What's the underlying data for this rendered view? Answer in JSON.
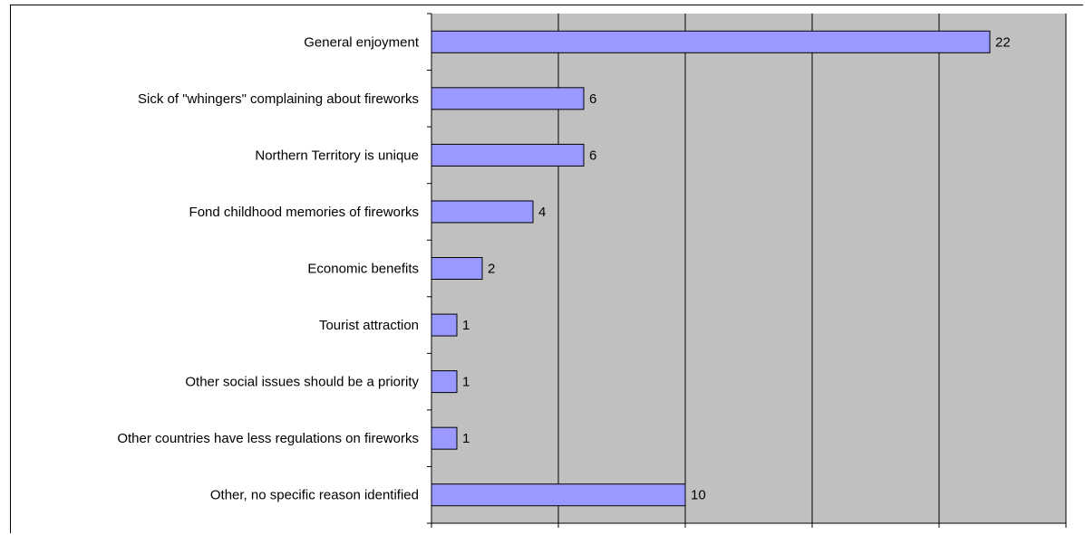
{
  "chart_data": {
    "type": "bar",
    "orientation": "horizontal",
    "categories": [
      "General enjoyment",
      "Sick of \"whingers\" complaining about fireworks",
      "Northern Territory is unique",
      "Fond childhood memories of fireworks",
      "Economic benefits",
      "Tourist attraction",
      "Other social issues should be a priority",
      "Other countries have less regulations on fireworks",
      "Other, no specific reason identified"
    ],
    "values": [
      22,
      6,
      6,
      4,
      2,
      1,
      1,
      1,
      10
    ],
    "data_labels": [
      "22",
      "6",
      "6",
      "4",
      "2",
      "1",
      "1",
      "1",
      "10"
    ],
    "x_ticks": [
      "0",
      "5",
      "10",
      "15",
      "20",
      "25"
    ],
    "xlim": [
      0,
      25
    ],
    "title": "",
    "xlabel": "",
    "ylabel": "",
    "grid": "vertical",
    "legend": "none",
    "colors": {
      "bar_fill": "#9999ff",
      "bar_stroke": "#000000",
      "plot_background": "#c0c0c0",
      "gridline": "#000000"
    }
  }
}
